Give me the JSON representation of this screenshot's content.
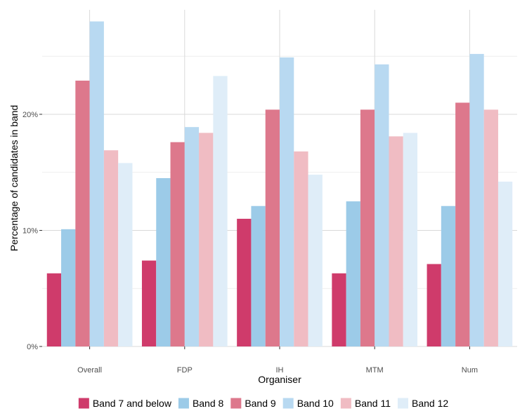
{
  "chart_data": {
    "type": "bar",
    "title": "",
    "xlabel": "Organiser",
    "ylabel": "Percentage of candidates in band",
    "categories": [
      "Overall",
      "FDP",
      "IH",
      "MTM",
      "Num"
    ],
    "ylim": [
      0,
      29
    ],
    "y_ticks": [
      0,
      10,
      20
    ],
    "y_tick_labels": [
      "0%",
      "10%",
      "20%"
    ],
    "grid": true,
    "legend_position": "bottom",
    "series": [
      {
        "name": "Band 7 and below",
        "color": "#cf3b6b",
        "values": [
          6.3,
          7.4,
          11.0,
          6.3,
          7.1
        ]
      },
      {
        "name": "Band 8",
        "color": "#9ccbe8",
        "values": [
          10.1,
          14.5,
          12.1,
          12.5,
          12.1
        ]
      },
      {
        "name": "Band 9",
        "color": "#dd788c",
        "values": [
          22.9,
          17.6,
          20.4,
          20.4,
          21.0
        ]
      },
      {
        "name": "Band 10",
        "color": "#b8d9f1",
        "values": [
          28.0,
          18.9,
          24.9,
          24.3,
          25.2
        ]
      },
      {
        "name": "Band 11",
        "color": "#f0bcc3",
        "values": [
          16.9,
          18.4,
          16.8,
          18.1,
          20.4
        ]
      },
      {
        "name": "Band 12",
        "color": "#dfedf8",
        "values": [
          15.8,
          23.3,
          14.8,
          18.4,
          14.2
        ]
      }
    ]
  }
}
